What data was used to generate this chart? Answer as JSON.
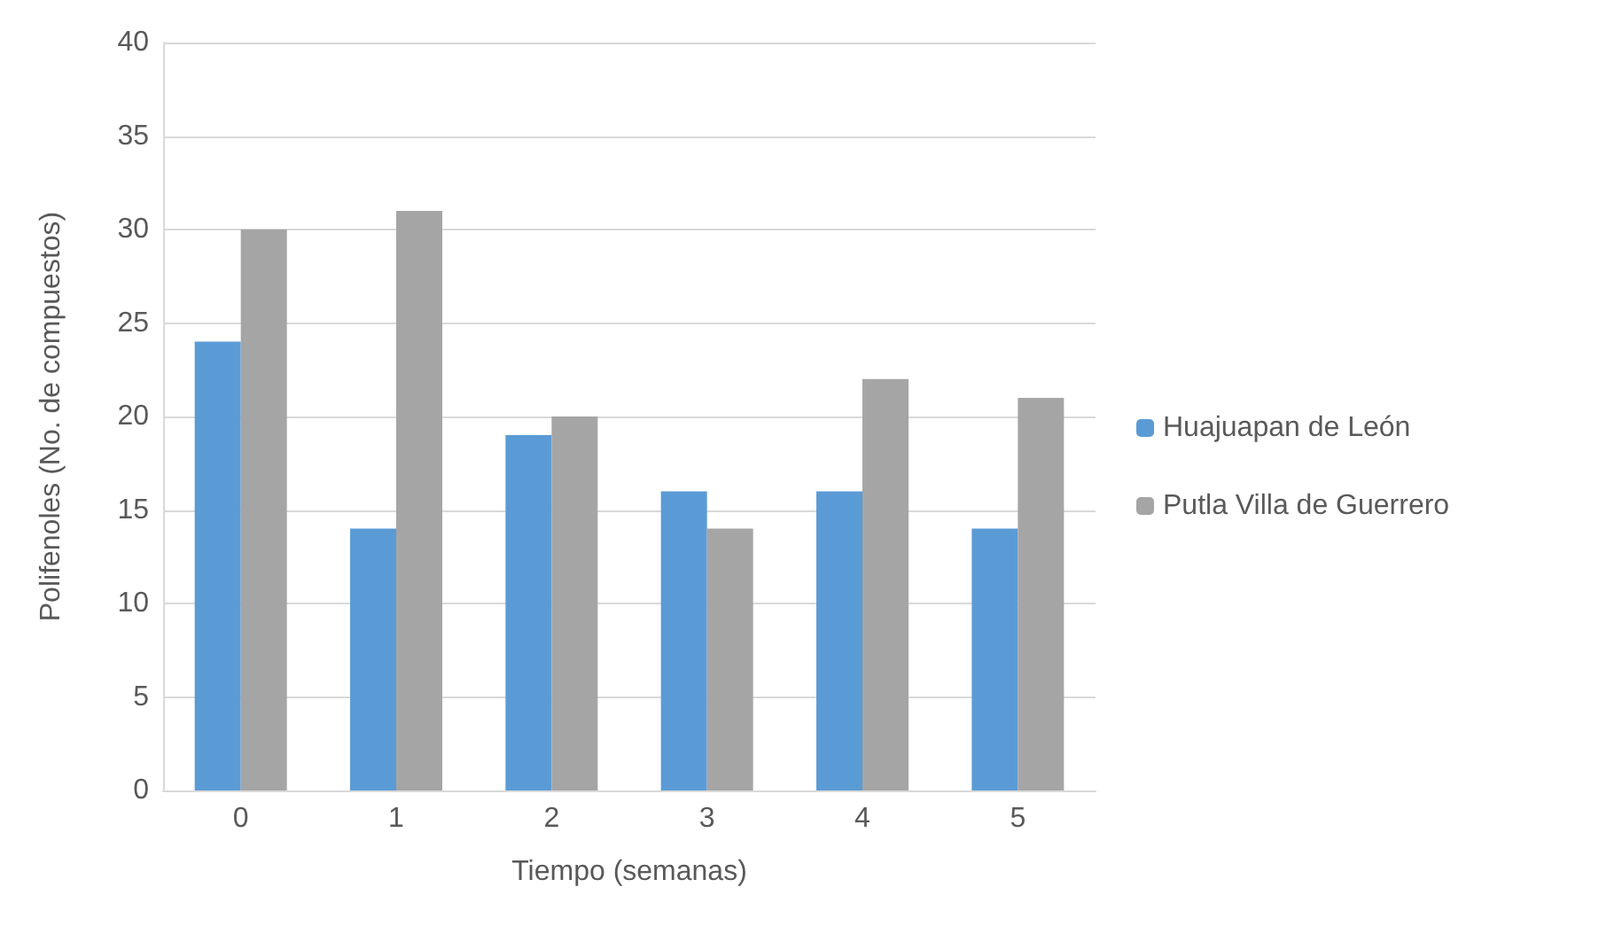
{
  "chart_data": {
    "type": "bar",
    "xlabel": "Tiempo (semanas)",
    "ylabel": "Polifenoles (No. de compuestos)",
    "categories": [
      "0",
      "1",
      "2",
      "3",
      "4",
      "5"
    ],
    "series": [
      {
        "name": "Huajuapan de León",
        "color": "#5b9bd5",
        "values": [
          24,
          14,
          19,
          16,
          16,
          14
        ]
      },
      {
        "name": "Putla Villa de Guerrero",
        "color": "#a5a5a5",
        "values": [
          30,
          31,
          20,
          14,
          22,
          21
        ]
      }
    ],
    "ylim": [
      0,
      40
    ],
    "yticks": [
      0,
      5,
      10,
      15,
      20,
      25,
      30,
      35,
      40
    ],
    "grid": "y",
    "legend": "right"
  }
}
